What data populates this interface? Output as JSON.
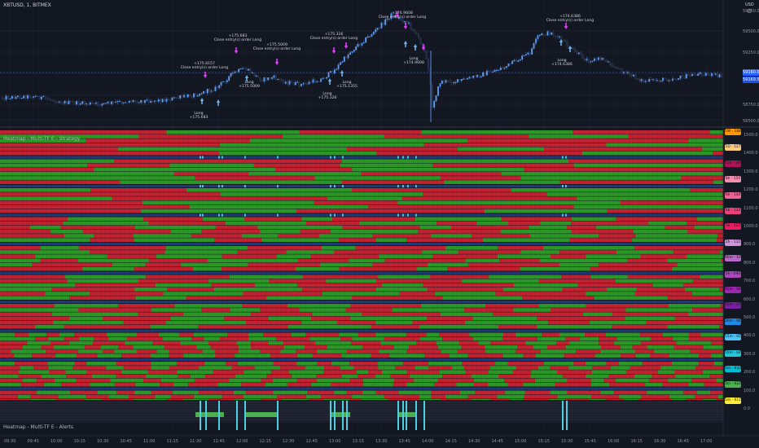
{
  "symbol": {
    "title": "XBTUSD, 1, BITMEX",
    "currency": "USD"
  },
  "price_axis": {
    "labels": [
      "59750.0",
      "59500.0",
      "59250.0",
      "59000.0",
      "58750.0",
      "58500.0"
    ],
    "last_price": "59160.0",
    "last_price_color": "#2962ff",
    "ask_tag": "59169.5"
  },
  "panes": {
    "strategy_title": "Heatmap - Multi-TF E - Strategy",
    "alerts_title": "Heatmap - Multi-TF E - Alerts"
  },
  "heatmap_axis": {
    "labels": [
      "1500.0",
      "1400.0",
      "1300.0",
      "1200.0",
      "1100.0",
      "1000.0",
      "900.0",
      "800.0",
      "700.0",
      "600.0",
      "500.0",
      "400.0",
      "300.0",
      "200.0",
      "100.0",
      "0.0"
    ]
  },
  "timeframe_tags": [
    {
      "label": "1W - 168",
      "color": "#ff9800"
    },
    {
      "label": "1D - 127",
      "color": "#ffcc80"
    },
    {
      "label": "12h - 140",
      "color": "#ad1457"
    },
    {
      "label": "8h - 155",
      "color": "#f48fb1"
    },
    {
      "label": "6h - 144",
      "color": "#f06292"
    },
    {
      "label": "4h - 133",
      "color": "#ec407a"
    },
    {
      "label": "3h - 122",
      "color": "#e91e63"
    },
    {
      "label": "2h - 111",
      "color": "#ce93d8"
    },
    {
      "label": "90m - 101",
      "color": "#ba68c8"
    },
    {
      "label": "1h - 095",
      "color": "#ab47bc"
    },
    {
      "label": "45m - 089",
      "color": "#9c27b0"
    },
    {
      "label": "30m - 077",
      "color": "#7b1fa2"
    },
    {
      "label": "20m - 066",
      "color": "#1e88e5"
    },
    {
      "label": "15m - 055",
      "color": "#4fc3f7"
    },
    {
      "label": "10m - 044",
      "color": "#26c6da"
    },
    {
      "label": "5m - 033",
      "color": "#00bcd4"
    },
    {
      "label": "3m - 022",
      "color": "#4caf50"
    },
    {
      "label": "1m - 011",
      "color": "#ffeb3b"
    }
  ],
  "time_axis": {
    "labels": [
      "09:30",
      "09:45",
      "10:00",
      "10:15",
      "10:30",
      "10:45",
      "11:00",
      "11:15",
      "11:30",
      "11:45",
      "12:00",
      "12:15",
      "12:30",
      "12:45",
      "13:00",
      "13:15",
      "13:30",
      "13:45",
      "14:00",
      "14:15",
      "14:30",
      "14:45",
      "15:00",
      "15:15",
      "15:30",
      "15:45",
      "16:00",
      "16:15",
      "16:30",
      "16:45",
      "17:00"
    ]
  },
  "annotations": [
    {
      "lines": [
        "+175.8157",
        "Close entry(s) order Long"
      ]
    },
    {
      "lines": [
        "Long",
        "+175.683"
      ]
    },
    {
      "lines": [
        "+175.683",
        "Close entry(s) order Long"
      ]
    },
    {
      "lines": [
        "Long",
        "+175.5009"
      ]
    },
    {
      "lines": [
        "+175.5009",
        "Close entry(s) order Long"
      ]
    },
    {
      "lines": [
        "+175.326",
        "Close entry(s) order Long"
      ]
    },
    {
      "lines": [
        "Long",
        "+175.326"
      ]
    },
    {
      "lines": [
        "Long",
        "+175.1355"
      ]
    },
    {
      "lines": [
        "+174.9608",
        "Close entry(s) order Long"
      ]
    },
    {
      "lines": [
        "Long",
        "+174.9608"
      ]
    },
    {
      "lines": [
        "+174.6386",
        "Close entry(s) order Long"
      ]
    },
    {
      "lines": [
        "Long",
        "+174.6386"
      ]
    }
  ],
  "colors": {
    "background": "#131722",
    "up_candle": "#5b9cf6",
    "down_candle": "#1f2a44",
    "heat_green": "#2d9b27",
    "heat_red": "#c62332",
    "separator": "#1f3c78",
    "signal_cyan": "#4dd0e1",
    "buy_arrow": "#64b5f6",
    "sell_arrow": "#e040fb"
  }
}
